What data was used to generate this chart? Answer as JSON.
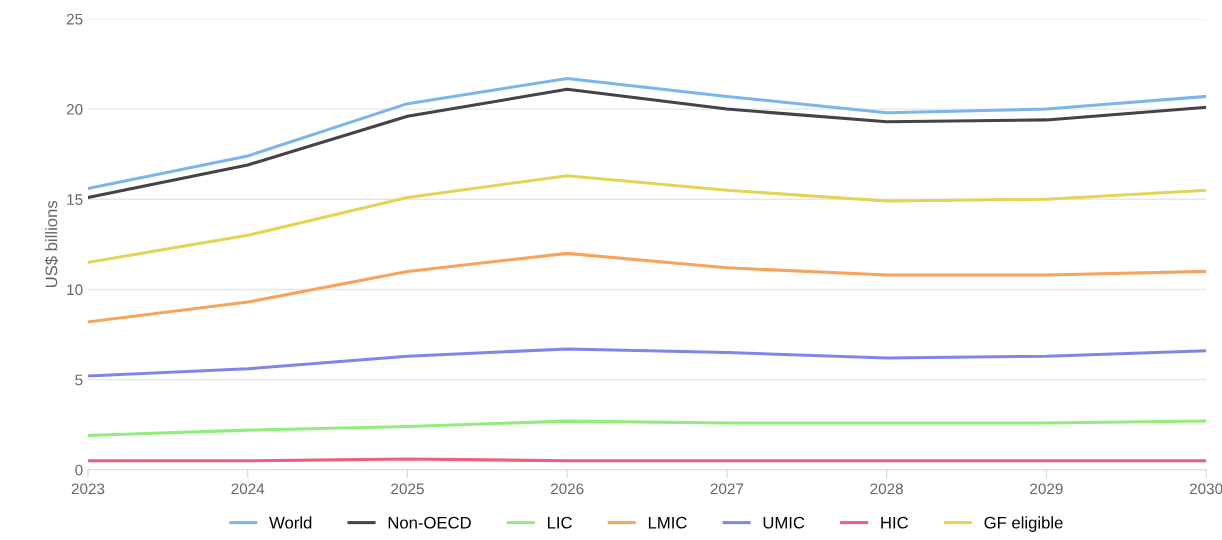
{
  "chart_data": {
    "type": "line",
    "ylabel": "US$ billions",
    "x": [
      2023,
      2024,
      2025,
      2026,
      2027,
      2028,
      2029,
      2030
    ],
    "xlim": [
      2023,
      2030
    ],
    "xticks": [
      2023,
      2024,
      2025,
      2026,
      2027,
      2028,
      2029,
      2030
    ],
    "ylim": [
      0,
      25
    ],
    "yticks": [
      0,
      5,
      10,
      15,
      20,
      25
    ],
    "grid": "y",
    "legend": "bottom",
    "marker": "none",
    "line_style": "solid",
    "series": [
      {
        "name": "World",
        "color": "#7cb5ec",
        "values": [
          15.6,
          17.4,
          20.3,
          21.7,
          20.7,
          19.8,
          20.0,
          20.7
        ]
      },
      {
        "name": "Non-OECD",
        "color": "#434348",
        "values": [
          15.1,
          16.9,
          19.6,
          21.1,
          20.0,
          19.3,
          19.4,
          20.1
        ]
      },
      {
        "name": "LIC",
        "color": "#90ed7d",
        "values": [
          1.9,
          2.2,
          2.4,
          2.7,
          2.6,
          2.6,
          2.6,
          2.7
        ]
      },
      {
        "name": "LMIC",
        "color": "#f7a35c",
        "values": [
          8.2,
          9.3,
          11.0,
          12.0,
          11.2,
          10.8,
          10.8,
          11.0
        ]
      },
      {
        "name": "UMIC",
        "color": "#8085e9",
        "values": [
          5.2,
          5.6,
          6.3,
          6.7,
          6.5,
          6.2,
          6.3,
          6.6
        ]
      },
      {
        "name": "HIC",
        "color": "#f15c80",
        "values": [
          0.5,
          0.5,
          0.6,
          0.5,
          0.5,
          0.5,
          0.5,
          0.5
        ]
      },
      {
        "name": "GF eligible",
        "color": "#e4d354",
        "values": [
          11.5,
          13.0,
          15.1,
          16.3,
          15.5,
          14.9,
          15.0,
          15.5
        ]
      }
    ]
  }
}
